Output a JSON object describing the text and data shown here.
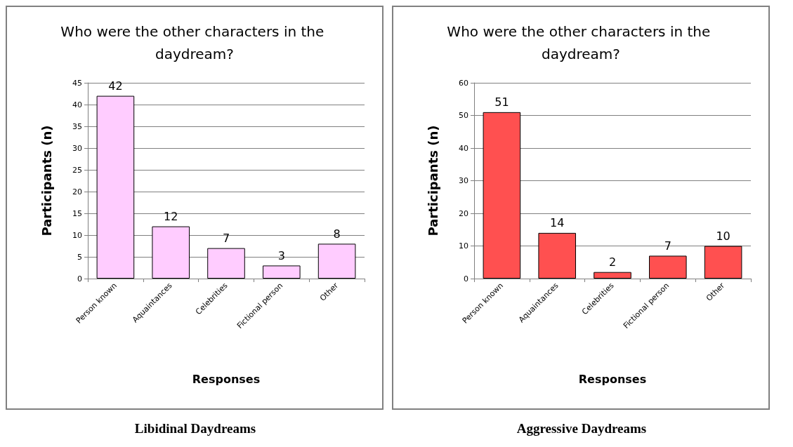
{
  "chart_data": [
    {
      "type": "bar",
      "title": "Who were the other characters in the daydream?",
      "xlabel": "Responses",
      "ylabel": "Participants (n)",
      "categories": [
        "Person known",
        "Aquaintances",
        "Celebrities",
        "Fictional person",
        "Other"
      ],
      "values": [
        42,
        12,
        7,
        3,
        8
      ],
      "color": "#ffccff",
      "ylim": [
        0,
        45
      ],
      "yticks": [
        0,
        5,
        10,
        15,
        20,
        25,
        30,
        35,
        40,
        45
      ],
      "grid": "y",
      "data_labels": true,
      "annotations": [
        "Libidinal Daydreams"
      ]
    },
    {
      "type": "bar",
      "title": "Who were the other characters in the daydream?",
      "xlabel": "Responses",
      "ylabel": "Participants (n)",
      "categories": [
        "Person known",
        "Aquaintances",
        "Celebrities",
        "Fictional person",
        "Other"
      ],
      "values": [
        51,
        14,
        2,
        7,
        10
      ],
      "color": "#ff5050",
      "ylim": [
        0,
        60
      ],
      "yticks": [
        0,
        10,
        20,
        30,
        40,
        50,
        60
      ],
      "grid": "y",
      "data_labels": true,
      "annotations": [
        "Aggressive Daydreams"
      ]
    }
  ]
}
